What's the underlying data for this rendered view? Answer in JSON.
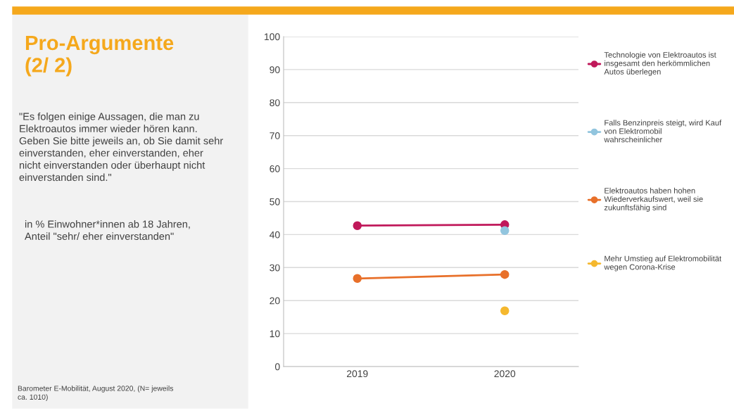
{
  "chart_data": {
    "type": "line",
    "title": "Pro-Argumente\n(2/ 2)",
    "annotations": [
      "\"Es folgen einige Aussagen, die man zu\nElektroautos immer wieder hören kann.\nGeben Sie bitte jeweils an, ob Sie damit sehr\neinverstanden, eher einverstanden, eher\nnicht einverstanden oder überhaupt nicht\neinverstanden sind.\"",
      "in % Einwohner*innen ab 18 Jahren,\nAnteil \"sehr/ eher einverstanden\"",
      "Barometer E-Mobilität, August 2020, (N= jeweils\nca. 1010)"
    ],
    "categories": [
      "2019",
      "2020"
    ],
    "series": [
      {
        "name": "Technologie von Elektroautos ist\ninsgesamt den herkömmlichen\nAutos überlegen",
        "color": "#c0185a",
        "values": [
          42.7,
          43.0
        ]
      },
      {
        "name": "Falls Benzinpreis steigt, wird Kauf\nvon Elektromobil\nwahrscheinlicher",
        "color": "#92c5de",
        "values": [
          null,
          41.2
        ]
      },
      {
        "name": "Elektroautos haben hohen\nWiederverkaufswert, weil sie\nzukunftsfähig sind",
        "color": "#e8702a",
        "values": [
          26.7,
          27.9
        ]
      },
      {
        "name": "Mehr Umstieg auf Elektromobilität\nwegen Corona-Krise",
        "color": "#f5b82e",
        "values": [
          null,
          16.9
        ]
      }
    ],
    "ylim": [
      0,
      100
    ],
    "yticks": [
      0,
      10,
      20,
      30,
      40,
      50,
      60,
      70,
      80,
      90,
      100
    ],
    "grid": "y",
    "legend": "right",
    "marker": "circle",
    "line_style": "solid"
  }
}
